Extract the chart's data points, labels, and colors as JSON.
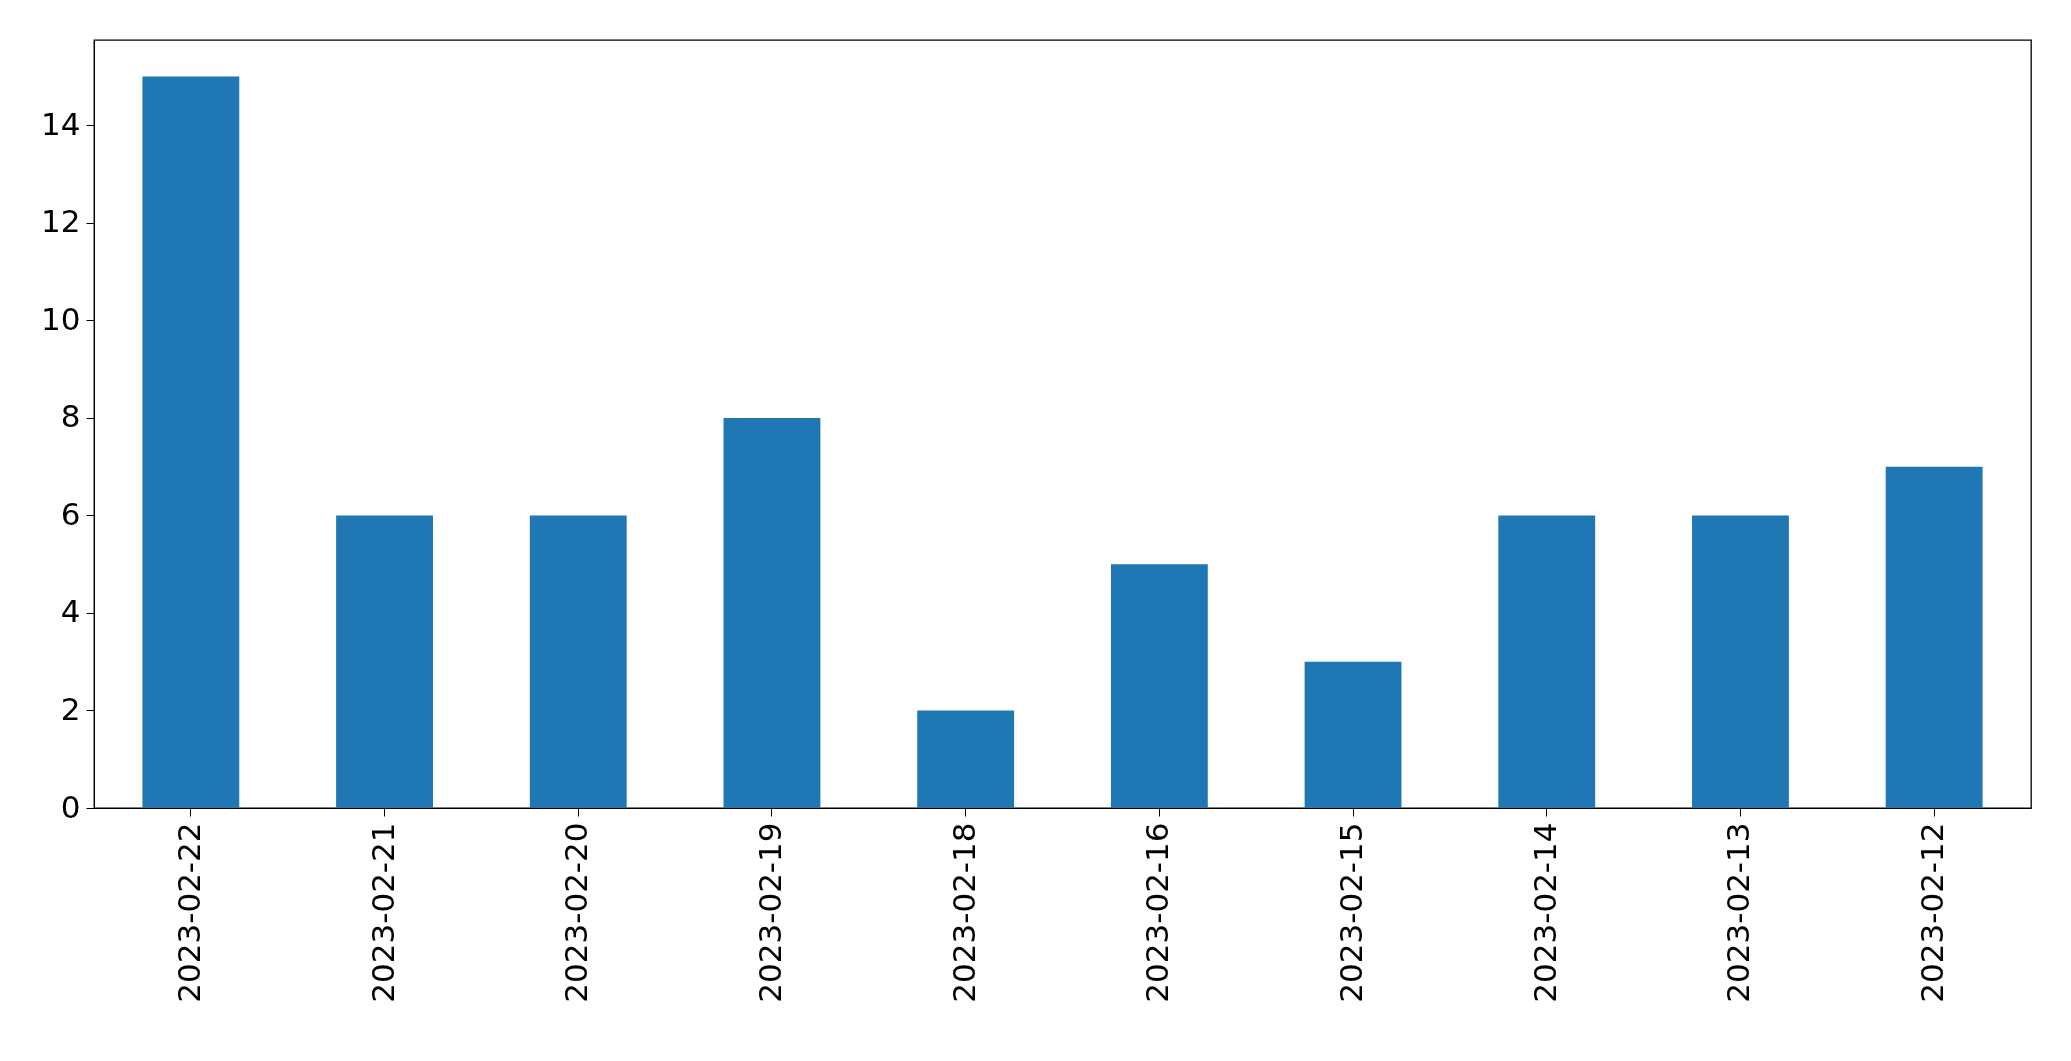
{
  "chart_data": {
    "type": "bar",
    "categories": [
      "2023-02-22",
      "2023-02-21",
      "2023-02-20",
      "2023-02-19",
      "2023-02-18",
      "2023-02-16",
      "2023-02-15",
      "2023-02-14",
      "2023-02-13",
      "2023-02-12"
    ],
    "values": [
      15,
      6,
      6,
      8,
      2,
      5,
      3,
      6,
      6,
      7
    ],
    "color": "#1f77b4",
    "ylim": [
      0,
      15.75
    ],
    "yticks": [
      0,
      2,
      4,
      6,
      8,
      10,
      12,
      14
    ],
    "grid": false
  }
}
